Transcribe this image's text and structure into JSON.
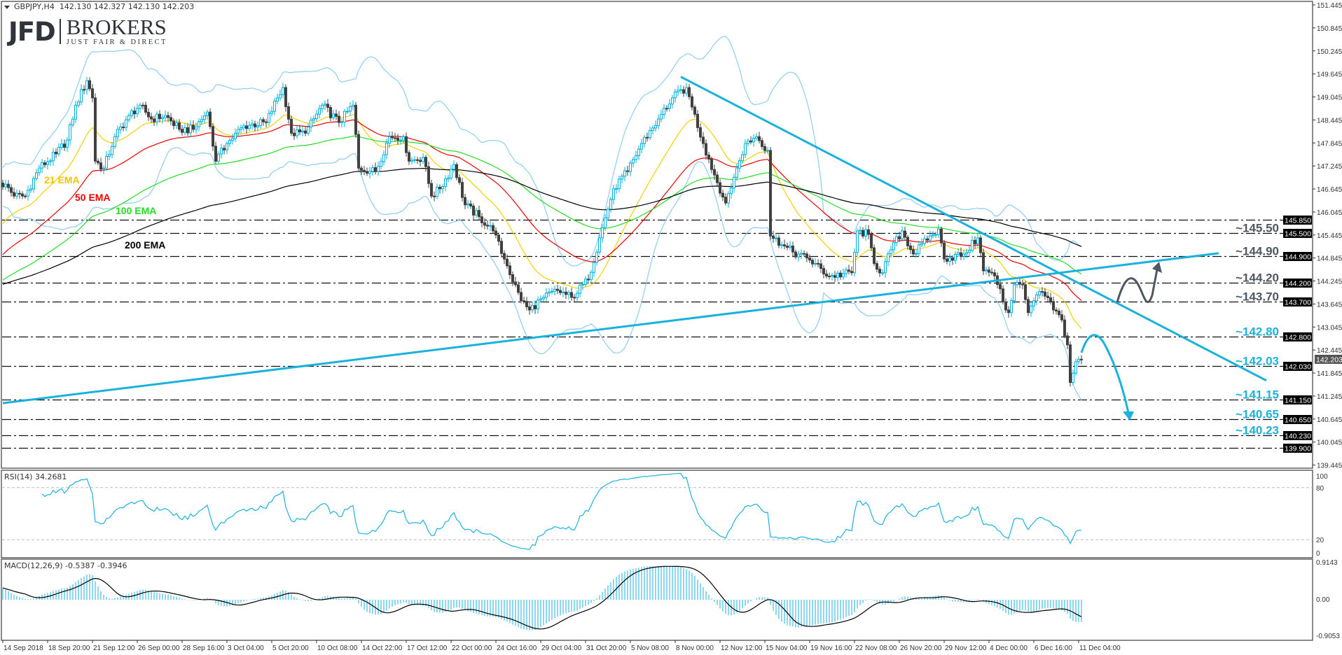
{
  "header": {
    "symbol": "GBPJPY,H4",
    "ohlc": "142.130 142.327 142.130 142.203"
  },
  "logo": {
    "brand": "JFD",
    "name": "BROKERS",
    "tagline": "JUST FAIR & DIRECT"
  },
  "chart_data": {
    "type": "candlestick",
    "symbol": "GBPJPY",
    "timeframe": "H4",
    "ylim": [
      139.445,
      151.445
    ],
    "close_path": [
      [
        1,
        146.77
      ],
      [
        4,
        146.46
      ],
      [
        8,
        146.46
      ],
      [
        13,
        147.19
      ],
      [
        19,
        147.56
      ],
      [
        23,
        147.92
      ],
      [
        26,
        148.83
      ],
      [
        30,
        149.47
      ],
      [
        32,
        149.02
      ],
      [
        33,
        147.37
      ],
      [
        36,
        147.19
      ],
      [
        40,
        148.01
      ],
      [
        45,
        148.56
      ],
      [
        49,
        148.83
      ],
      [
        53,
        148.47
      ],
      [
        58,
        148.56
      ],
      [
        63,
        148.2
      ],
      [
        68,
        148.2
      ],
      [
        73,
        148.65
      ],
      [
        76,
        147.37
      ],
      [
        80,
        147.83
      ],
      [
        86,
        148.29
      ],
      [
        94,
        148.38
      ],
      [
        98,
        149.02
      ],
      [
        100,
        149.29
      ],
      [
        103,
        148.1
      ],
      [
        108,
        148.1
      ],
      [
        114,
        148.83
      ],
      [
        120,
        148.38
      ],
      [
        125,
        148.83
      ],
      [
        127,
        147.19
      ],
      [
        133,
        147.1
      ],
      [
        138,
        148.01
      ],
      [
        143,
        148.01
      ],
      [
        145,
        147.37
      ],
      [
        150,
        147.47
      ],
      [
        153,
        146.46
      ],
      [
        156,
        146.65
      ],
      [
        161,
        147.28
      ],
      [
        165,
        146.23
      ],
      [
        170,
        145.92
      ],
      [
        175,
        145.55
      ],
      [
        180,
        144.64
      ],
      [
        185,
        143.73
      ],
      [
        188,
        143.49
      ],
      [
        193,
        143.82
      ],
      [
        198,
        144.0
      ],
      [
        203,
        143.82
      ],
      [
        209,
        144.28
      ],
      [
        213,
        145.37
      ],
      [
        218,
        146.65
      ],
      [
        223,
        147.1
      ],
      [
        228,
        147.83
      ],
      [
        234,
        148.47
      ],
      [
        239,
        149.02
      ],
      [
        244,
        149.29
      ],
      [
        246,
        148.78
      ],
      [
        250,
        147.83
      ],
      [
        254,
        147.01
      ],
      [
        258,
        146.28
      ],
      [
        262,
        147.19
      ],
      [
        265,
        147.83
      ],
      [
        269,
        148.01
      ],
      [
        273,
        147.65
      ],
      [
        274,
        145.42
      ],
      [
        278,
        145.19
      ],
      [
        282,
        145.0
      ],
      [
        288,
        144.79
      ],
      [
        295,
        144.37
      ],
      [
        303,
        144.46
      ],
      [
        305,
        145.55
      ],
      [
        309,
        145.46
      ],
      [
        311,
        144.7
      ],
      [
        314,
        144.46
      ],
      [
        317,
        145.06
      ],
      [
        321,
        145.55
      ],
      [
        325,
        144.95
      ],
      [
        330,
        145.31
      ],
      [
        334,
        145.6
      ],
      [
        336,
        144.82
      ],
      [
        343,
        144.95
      ],
      [
        348,
        145.37
      ],
      [
        350,
        144.51
      ],
      [
        353,
        144.46
      ],
      [
        356,
        144.04
      ],
      [
        358,
        143.49
      ],
      [
        359,
        143.42
      ],
      [
        361,
        144.15
      ],
      [
        364,
        144.15
      ],
      [
        366,
        143.42
      ],
      [
        368,
        143.73
      ],
      [
        371,
        143.96
      ],
      [
        375,
        143.49
      ],
      [
        378,
        143.23
      ],
      [
        380,
        142.58
      ],
      [
        381,
        141.6
      ],
      [
        383,
        142.14
      ],
      [
        385,
        142.203
      ]
    ],
    "y_ticks": [
      "151.445",
      "150.845",
      "150.245",
      "149.645",
      "149.045",
      "148.445",
      "147.845",
      "147.245",
      "146.645",
      "146.045",
      "145.445",
      "144.845",
      "144.245",
      "143.645",
      "143.045",
      "142.445",
      "141.845",
      "141.245",
      "140.645",
      "140.045",
      "139.445"
    ],
    "x_ticks": [
      "14 Sep 2018",
      "18 Sep 20:00",
      "21 Sep 12:00",
      "26 Sep 00:00",
      "28 Sep 16:00",
      "3 Oct 04:00",
      "5 Oct 20:00",
      "10 Oct 08:00",
      "14 Oct 22:00",
      "17 Oct 12:00",
      "22 Oct 00:00",
      "24 Oct 16:00",
      "29 Oct 04:00",
      "31 Oct 20:00",
      "5 Nov 08:00",
      "8 Nov 00:00",
      "12 Nov 12:00",
      "15 Nov 04:00",
      "19 Nov 16:00",
      "22 Nov 08:00",
      "26 Nov 20:00",
      "29 Nov 12:00",
      "4 Dec 00:00",
      "6 Dec 16:00",
      "11 Dec 04:00"
    ],
    "colors": {
      "bull": "#00b0de",
      "bear": "#404040",
      "trendline": "#1ab2dc",
      "bollinger": "#8ccdf5",
      "annotation_gray": "#4d5862",
      "annotation_cyan": "#1ab2dc"
    },
    "ema": [
      {
        "name": "21 EMA",
        "period": 21,
        "color": "#f5d000",
        "label_color": "#f5c400",
        "start": 145.64
      },
      {
        "name": "50 EMA",
        "period": 50,
        "color": "#ee0000",
        "label_color": "#ee0000",
        "start": 144.86
      },
      {
        "name": "100 EMA",
        "period": 100,
        "color": "#22dd22",
        "label_color": "#22dd22",
        "start": 144.22
      },
      {
        "name": "200 EMA",
        "period": 200,
        "color": "#000000",
        "label_color": "#000000",
        "start": 144.13
      }
    ],
    "bollinger": {
      "period": 20,
      "deviation": 2
    },
    "levels": [
      {
        "price": 145.85,
        "label": "145.850",
        "annotation": "",
        "tone": "gray"
      },
      {
        "price": 145.5,
        "label": "145.500",
        "annotation": "~145.50",
        "tone": "gray"
      },
      {
        "price": 144.9,
        "label": "144.900",
        "annotation": "~144.90",
        "tone": "gray"
      },
      {
        "price": 144.2,
        "label": "144.200",
        "annotation": "~144.20",
        "tone": "gray"
      },
      {
        "price": 143.7,
        "label": "143.700",
        "annotation": "~143.70",
        "tone": "gray"
      },
      {
        "price": 142.8,
        "label": "142.800",
        "annotation": "~142.80",
        "tone": "cyan"
      },
      {
        "price": 142.03,
        "label": "142.030",
        "annotation": "~142.03",
        "tone": "cyan"
      },
      {
        "price": 141.15,
        "label": "141.150",
        "annotation": "~141.15",
        "tone": "cyan"
      },
      {
        "price": 140.65,
        "label": "140.650",
        "annotation": "~140.65",
        "tone": "cyan"
      },
      {
        "price": 140.23,
        "label": "140.230",
        "annotation": "~140.23",
        "tone": "cyan"
      },
      {
        "price": 139.9,
        "label": "139.900",
        "annotation": "",
        "tone": "gray"
      }
    ],
    "current_price": {
      "price": 142.203,
      "label": "142.203"
    },
    "trendlines": [
      {
        "name": "rising-support",
        "from": [
          0,
          141.06
        ],
        "to": [
          434,
          144.97
        ]
      },
      {
        "name": "falling-resistance",
        "from": [
          242,
          149.57
        ],
        "to": [
          451,
          141.65
        ]
      }
    ],
    "rsi": {
      "label": "RSI(14) 34.2681",
      "period": 14,
      "ticks": [
        "100",
        "80",
        "20",
        "0"
      ],
      "levels": [
        80,
        20
      ]
    },
    "macd": {
      "label": "MACD(12,26,9) -0.5387 -0.3946",
      "fast": 12,
      "slow": 26,
      "signal": 9,
      "ticks": [
        "0.9143",
        "0.00",
        "-0.9053"
      ],
      "range": [
        -0.9053,
        0.9143
      ]
    }
  }
}
